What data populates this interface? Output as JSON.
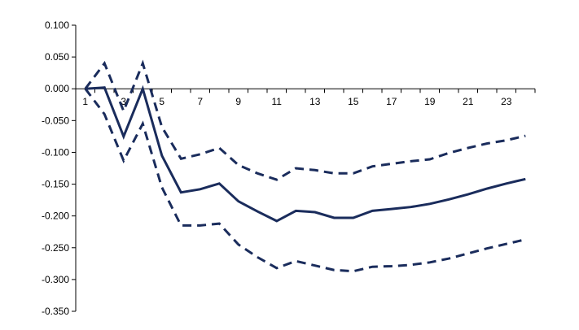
{
  "chart_data": {
    "type": "line",
    "title": "",
    "xlabel": "",
    "ylabel": "",
    "x": [
      1,
      2,
      3,
      4,
      5,
      6,
      7,
      8,
      9,
      10,
      11,
      12,
      13,
      14,
      15,
      16,
      17,
      18,
      19,
      20,
      21,
      22,
      23,
      24
    ],
    "x_tick_labels": [
      "1",
      "3",
      "5",
      "7",
      "9",
      "11",
      "13",
      "15",
      "17",
      "19",
      "21",
      "23"
    ],
    "x_tick_values": [
      1,
      3,
      5,
      7,
      9,
      11,
      13,
      15,
      17,
      19,
      21,
      23
    ],
    "ylim": [
      -0.35,
      0.1
    ],
    "y_ticks": [
      0.1,
      0.05,
      0.0,
      -0.05,
      -0.1,
      -0.15,
      -0.2,
      -0.25,
      -0.3,
      -0.35
    ],
    "y_tick_labels": [
      "0.100",
      "0.050",
      "0.000",
      "-0.050",
      "-0.100",
      "-0.150",
      "-0.200",
      "-0.250",
      "-0.300",
      "-0.350"
    ],
    "series": [
      {
        "style": "solid",
        "values": [
          0.0,
          0.002,
          -0.075,
          0.0,
          -0.105,
          -0.163,
          -0.158,
          -0.149,
          -0.177,
          -0.193,
          -0.208,
          -0.192,
          -0.194,
          -0.203,
          -0.203,
          -0.192,
          -0.189,
          -0.186,
          -0.181,
          -0.174,
          -0.166,
          -0.157,
          -0.149,
          -0.142
        ]
      },
      {
        "style": "dashed",
        "values": [
          0.0,
          0.04,
          -0.035,
          0.04,
          -0.06,
          -0.11,
          -0.103,
          -0.093,
          -0.12,
          -0.133,
          -0.143,
          -0.125,
          -0.128,
          -0.133,
          -0.133,
          -0.122,
          -0.118,
          -0.114,
          -0.111,
          -0.101,
          -0.093,
          -0.086,
          -0.081,
          -0.074
        ]
      },
      {
        "style": "dashed",
        "values": [
          0.0,
          -0.04,
          -0.113,
          -0.055,
          -0.155,
          -0.215,
          -0.215,
          -0.212,
          -0.245,
          -0.265,
          -0.282,
          -0.271,
          -0.278,
          -0.285,
          -0.287,
          -0.28,
          -0.279,
          -0.277,
          -0.273,
          -0.267,
          -0.259,
          -0.251,
          -0.244,
          -0.237
        ]
      }
    ],
    "grid": false,
    "legend": "none",
    "colors": {
      "series": "#1a2c5c",
      "axis": "#000000"
    }
  }
}
